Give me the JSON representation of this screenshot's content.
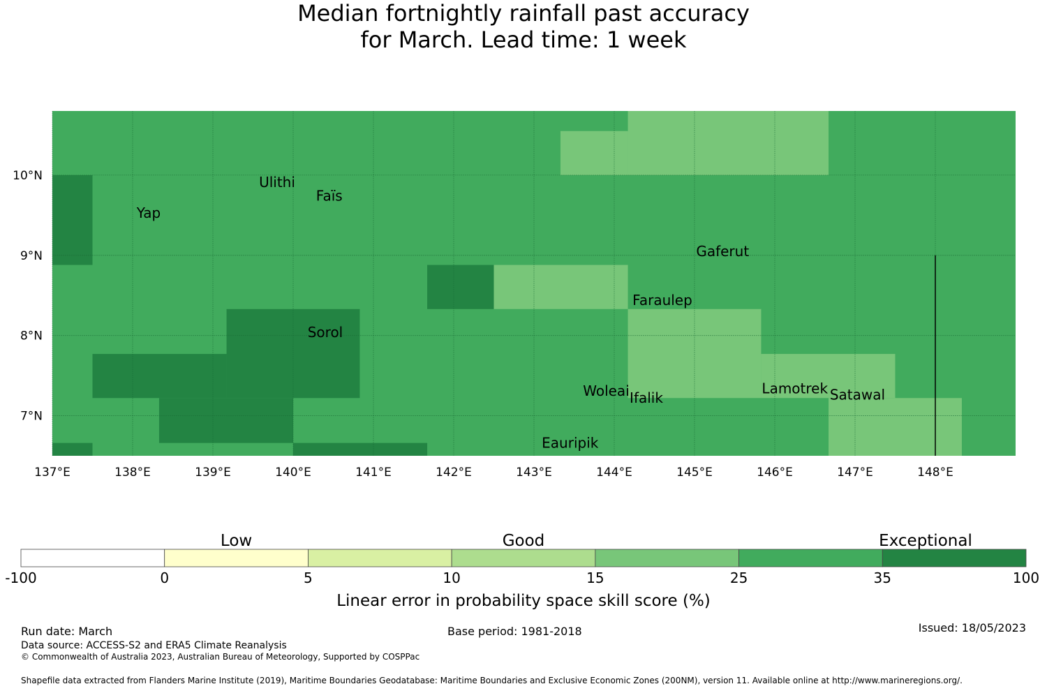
{
  "title": {
    "line1": "Median fortnightly rainfall past accuracy",
    "line2": "for March. Lead time: 1 week"
  },
  "map": {
    "lon_range": [
      137.0,
      149.0
    ],
    "lat_range": [
      6.5,
      10.8
    ],
    "lon_ticks": [
      {
        "value": 137,
        "label": "137°E"
      },
      {
        "value": 138,
        "label": "138°E"
      },
      {
        "value": 139,
        "label": "139°E"
      },
      {
        "value": 140,
        "label": "140°E"
      },
      {
        "value": 141,
        "label": "141°E"
      },
      {
        "value": 142,
        "label": "142°E"
      },
      {
        "value": 143,
        "label": "143°E"
      },
      {
        "value": 144,
        "label": "144°E"
      },
      {
        "value": 145,
        "label": "145°E"
      },
      {
        "value": 146,
        "label": "146°E"
      },
      {
        "value": 147,
        "label": "147°E"
      },
      {
        "value": 148,
        "label": "148°E"
      }
    ],
    "lat_ticks": [
      {
        "value": 10,
        "label": "10°N"
      },
      {
        "value": 9,
        "label": "9°N"
      },
      {
        "value": 8,
        "label": "8°N"
      },
      {
        "value": 7,
        "label": "7°N"
      }
    ],
    "background_category": 5,
    "cells": [
      {
        "lon0": 137.0,
        "lon1": 137.5,
        "lat0": 8.88,
        "lat1": 10.0,
        "category": 6
      },
      {
        "lon0": 137.0,
        "lon1": 137.5,
        "lat0": 6.5,
        "lat1": 6.66,
        "category": 6
      },
      {
        "lon0": 137.5,
        "lon1": 139.17,
        "lat0": 7.22,
        "lat1": 7.77,
        "category": 6
      },
      {
        "lon0": 138.33,
        "lon1": 140.0,
        "lat0": 6.66,
        "lat1": 7.22,
        "category": 6
      },
      {
        "lon0": 139.17,
        "lon1": 140.83,
        "lat0": 7.22,
        "lat1": 8.33,
        "category": 6
      },
      {
        "lon0": 140.0,
        "lon1": 141.67,
        "lat0": 6.5,
        "lat1": 6.66,
        "category": 6
      },
      {
        "lon0": 141.67,
        "lon1": 142.5,
        "lat0": 8.33,
        "lat1": 8.88,
        "category": 6
      },
      {
        "lon0": 142.5,
        "lon1": 144.17,
        "lat0": 8.33,
        "lat1": 8.88,
        "category": 4
      },
      {
        "lon0": 143.33,
        "lon1": 144.17,
        "lat0": 10.0,
        "lat1": 10.55,
        "category": 4
      },
      {
        "lon0": 144.17,
        "lon1": 146.67,
        "lat0": 10.0,
        "lat1": 10.8,
        "category": 4
      },
      {
        "lon0": 144.17,
        "lon1": 145.83,
        "lat0": 7.22,
        "lat1": 8.33,
        "category": 4
      },
      {
        "lon0": 145.83,
        "lon1": 147.5,
        "lat0": 7.22,
        "lat1": 7.77,
        "category": 4
      },
      {
        "lon0": 146.67,
        "lon1": 148.33,
        "lat0": 6.5,
        "lat1": 7.22,
        "category": 4
      }
    ],
    "places": [
      {
        "name": "Ulithi",
        "lon": 139.8,
        "lat": 9.85
      },
      {
        "name": "Faïs",
        "lon": 140.45,
        "lat": 9.68
      },
      {
        "name": "Yap",
        "lon": 138.2,
        "lat": 9.47
      },
      {
        "name": "Gaferut",
        "lon": 145.35,
        "lat": 8.99
      },
      {
        "name": "Faraulep",
        "lon": 144.6,
        "lat": 8.38
      },
      {
        "name": "Sorol",
        "lon": 140.4,
        "lat": 7.98
      },
      {
        "name": "Woleai",
        "lon": 143.9,
        "lat": 7.25
      },
      {
        "name": "Ifalik",
        "lon": 144.4,
        "lat": 7.16
      },
      {
        "name": "Lamotrek",
        "lon": 146.25,
        "lat": 7.28
      },
      {
        "name": "Satawal",
        "lon": 147.03,
        "lat": 7.2
      },
      {
        "name": "Eauripik",
        "lon": 143.45,
        "lat": 6.6
      }
    ],
    "boundary_line": {
      "lon": 148.0,
      "lat_from": 6.5,
      "lat_to": 9.0
    }
  },
  "legend": {
    "colors": [
      "#ffffff",
      "#ffffcc",
      "#d9f0a3",
      "#addd8e",
      "#78c679",
      "#41ab5d",
      "#238443"
    ],
    "edges": [
      "-100",
      "0",
      "5",
      "10",
      "15",
      "25",
      "35",
      "100"
    ],
    "groups": [
      "Low",
      "Good",
      "Exceptional"
    ],
    "axis_label": "Linear error in probability space skill score (%)"
  },
  "footer": {
    "run_date": "Run date: March",
    "base_period": "Base period: 1981-2018",
    "issued": "Issued: 18/05/2023",
    "data_source": "Data source: ACCESS-S2 and ERA5 Climate Reanalysis",
    "copyright": "© Commonwealth of Australia 2023, Australian Bureau of Meteorology, Supported by COSPPac",
    "shapefile": "Shapefile data extracted from Flanders Marine Institute (2019), Maritime Boundaries Geodatabase: Maritime Boundaries and Exclusive Economic Zones (200NM), version 11. Available online at http://www.marineregions.org/."
  }
}
